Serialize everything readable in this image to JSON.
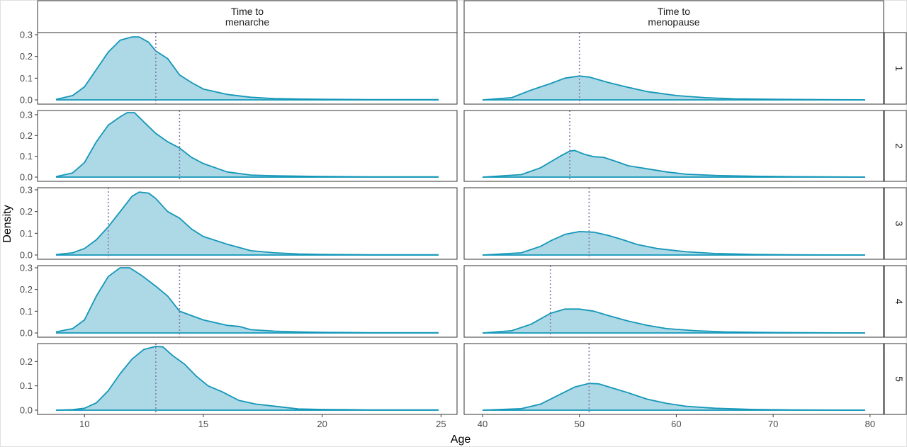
{
  "chart_data": {
    "type": "area",
    "xlabel": "Age",
    "ylabel": "Density",
    "columns": [
      {
        "strip": [
          "Time to",
          "menarche"
        ],
        "xlim": [
          8.8,
          24.9
        ],
        "xticks": [
          10,
          15,
          20,
          25
        ]
      },
      {
        "strip": [
          "Time to",
          "menopause"
        ],
        "xlim": [
          40,
          79.5
        ],
        "xticks": [
          40,
          50,
          60,
          70,
          80
        ]
      }
    ],
    "rows": [
      {
        "strip": "1",
        "ylim": [
          0,
          0.3
        ],
        "yticks": [
          0.0,
          0.1,
          0.2,
          0.3
        ]
      },
      {
        "strip": "2",
        "ylim": [
          0,
          0.31
        ],
        "yticks": [
          0.0,
          0.1,
          0.2,
          0.3
        ]
      },
      {
        "strip": "3",
        "ylim": [
          0,
          0.3
        ],
        "yticks": [
          0.0,
          0.1,
          0.2,
          0.3
        ]
      },
      {
        "strip": "4",
        "ylim": [
          0,
          0.3
        ],
        "yticks": [
          0.0,
          0.1,
          0.2,
          0.3
        ]
      },
      {
        "strip": "5",
        "ylim": [
          0,
          0.265
        ],
        "yticks": [
          0.0,
          0.1,
          0.2
        ]
      }
    ],
    "colors": {
      "line": "#1397b8",
      "fill": "#add8e6",
      "vline": "#7d7bb0",
      "panel_border": "#333333",
      "strip_bg": "#ffffff"
    },
    "grid": false,
    "panels": [
      {
        "row": 0,
        "col": 0,
        "vline": 13,
        "points": [
          [
            8.8,
            0.002
          ],
          [
            9.5,
            0.02
          ],
          [
            10,
            0.06
          ],
          [
            10.5,
            0.14
          ],
          [
            11,
            0.22
          ],
          [
            11.5,
            0.275
          ],
          [
            12,
            0.29
          ],
          [
            12.3,
            0.29
          ],
          [
            12.7,
            0.265
          ],
          [
            13,
            0.225
          ],
          [
            13.5,
            0.19
          ],
          [
            14,
            0.115
          ],
          [
            14.5,
            0.08
          ],
          [
            15,
            0.05
          ],
          [
            16,
            0.025
          ],
          [
            17,
            0.012
          ],
          [
            18,
            0.006
          ],
          [
            19,
            0.004
          ],
          [
            20,
            0.003
          ],
          [
            21,
            0.002
          ],
          [
            22,
            0.001
          ],
          [
            23,
            0.001
          ],
          [
            24.9,
            0.001
          ]
        ]
      },
      {
        "row": 0,
        "col": 1,
        "vline": 50,
        "points": [
          [
            40,
            0
          ],
          [
            43,
            0.01
          ],
          [
            45,
            0.045
          ],
          [
            47,
            0.075
          ],
          [
            48.5,
            0.1
          ],
          [
            50,
            0.11
          ],
          [
            51,
            0.105
          ],
          [
            53,
            0.08
          ],
          [
            55,
            0.058
          ],
          [
            57,
            0.038
          ],
          [
            60,
            0.02
          ],
          [
            63,
            0.01
          ],
          [
            66,
            0.005
          ],
          [
            70,
            0.003
          ],
          [
            75,
            0.001
          ],
          [
            79.5,
            0
          ]
        ]
      },
      {
        "row": 1,
        "col": 0,
        "vline": 14,
        "points": [
          [
            8.8,
            0.002
          ],
          [
            9.5,
            0.02
          ],
          [
            10,
            0.07
          ],
          [
            10.5,
            0.17
          ],
          [
            11,
            0.25
          ],
          [
            11.5,
            0.29
          ],
          [
            11.8,
            0.31
          ],
          [
            12.1,
            0.31
          ],
          [
            12.5,
            0.265
          ],
          [
            13,
            0.21
          ],
          [
            13.5,
            0.17
          ],
          [
            14,
            0.14
          ],
          [
            14.5,
            0.095
          ],
          [
            15,
            0.065
          ],
          [
            16,
            0.025
          ],
          [
            17,
            0.01
          ],
          [
            18,
            0.006
          ],
          [
            20,
            0.003
          ],
          [
            22,
            0.001
          ],
          [
            24.9,
            0.001
          ]
        ]
      },
      {
        "row": 1,
        "col": 1,
        "vline": 49,
        "points": [
          [
            40,
            0
          ],
          [
            44,
            0.012
          ],
          [
            46,
            0.045
          ],
          [
            48,
            0.1
          ],
          [
            49,
            0.125
          ],
          [
            49.5,
            0.128
          ],
          [
            50.5,
            0.11
          ],
          [
            51.5,
            0.098
          ],
          [
            52.5,
            0.095
          ],
          [
            54,
            0.072
          ],
          [
            55,
            0.055
          ],
          [
            57,
            0.04
          ],
          [
            59,
            0.025
          ],
          [
            61,
            0.014
          ],
          [
            64,
            0.008
          ],
          [
            68,
            0.004
          ],
          [
            72,
            0.002
          ],
          [
            79.5,
            0
          ]
        ]
      },
      {
        "row": 2,
        "col": 0,
        "vline": 11,
        "points": [
          [
            8.8,
            0.002
          ],
          [
            9.5,
            0.01
          ],
          [
            10,
            0.03
          ],
          [
            10.5,
            0.07
          ],
          [
            11,
            0.13
          ],
          [
            11.5,
            0.2
          ],
          [
            12,
            0.27
          ],
          [
            12.3,
            0.29
          ],
          [
            12.7,
            0.285
          ],
          [
            13,
            0.26
          ],
          [
            13.5,
            0.2
          ],
          [
            14,
            0.17
          ],
          [
            14.5,
            0.12
          ],
          [
            15,
            0.085
          ],
          [
            16,
            0.05
          ],
          [
            17,
            0.02
          ],
          [
            18,
            0.01
          ],
          [
            19,
            0.005
          ],
          [
            20,
            0.003
          ],
          [
            22,
            0.001
          ],
          [
            24.9,
            0.001
          ]
        ]
      },
      {
        "row": 2,
        "col": 1,
        "vline": 51,
        "points": [
          [
            40,
            0
          ],
          [
            44,
            0.01
          ],
          [
            46,
            0.04
          ],
          [
            47,
            0.065
          ],
          [
            48.5,
            0.095
          ],
          [
            50,
            0.108
          ],
          [
            51.5,
            0.105
          ],
          [
            53,
            0.09
          ],
          [
            54.5,
            0.07
          ],
          [
            56,
            0.048
          ],
          [
            58,
            0.03
          ],
          [
            61,
            0.015
          ],
          [
            64,
            0.007
          ],
          [
            68,
            0.003
          ],
          [
            72,
            0.001
          ],
          [
            79.5,
            0
          ]
        ]
      },
      {
        "row": 3,
        "col": 0,
        "vline": 14,
        "points": [
          [
            8.8,
            0.005
          ],
          [
            9.5,
            0.02
          ],
          [
            10,
            0.06
          ],
          [
            10.5,
            0.17
          ],
          [
            11,
            0.26
          ],
          [
            11.5,
            0.3
          ],
          [
            11.9,
            0.3
          ],
          [
            12.4,
            0.265
          ],
          [
            13,
            0.215
          ],
          [
            13.5,
            0.17
          ],
          [
            14,
            0.1
          ],
          [
            14.5,
            0.08
          ],
          [
            15,
            0.06
          ],
          [
            16,
            0.035
          ],
          [
            16.5,
            0.03
          ],
          [
            17,
            0.015
          ],
          [
            18,
            0.008
          ],
          [
            19,
            0.005
          ],
          [
            20,
            0.003
          ],
          [
            22,
            0.001
          ],
          [
            24.9,
            0.001
          ]
        ]
      },
      {
        "row": 3,
        "col": 1,
        "vline": 47,
        "points": [
          [
            40,
            0
          ],
          [
            43,
            0.01
          ],
          [
            45,
            0.04
          ],
          [
            47,
            0.09
          ],
          [
            48.5,
            0.11
          ],
          [
            50,
            0.11
          ],
          [
            51.5,
            0.1
          ],
          [
            53,
            0.08
          ],
          [
            55,
            0.055
          ],
          [
            57,
            0.035
          ],
          [
            59,
            0.02
          ],
          [
            62,
            0.01
          ],
          [
            65,
            0.005
          ],
          [
            70,
            0.002
          ],
          [
            79.5,
            0
          ]
        ]
      },
      {
        "row": 4,
        "col": 0,
        "vline": 13,
        "points": [
          [
            8.8,
            0
          ],
          [
            9.5,
            0.002
          ],
          [
            10,
            0.008
          ],
          [
            10.5,
            0.03
          ],
          [
            11,
            0.08
          ],
          [
            11.5,
            0.15
          ],
          [
            12,
            0.21
          ],
          [
            12.5,
            0.25
          ],
          [
            13,
            0.262
          ],
          [
            13.3,
            0.26
          ],
          [
            13.7,
            0.225
          ],
          [
            14.2,
            0.19
          ],
          [
            14.7,
            0.14
          ],
          [
            15.2,
            0.1
          ],
          [
            15.8,
            0.075
          ],
          [
            16.5,
            0.04
          ],
          [
            17.2,
            0.025
          ],
          [
            18.2,
            0.014
          ],
          [
            19,
            0.005
          ],
          [
            20,
            0.003
          ],
          [
            21,
            0.002
          ],
          [
            22,
            0.001
          ],
          [
            24.9,
            0.001
          ]
        ]
      },
      {
        "row": 4,
        "col": 1,
        "vline": 51,
        "points": [
          [
            40,
            0
          ],
          [
            44,
            0.006
          ],
          [
            46,
            0.025
          ],
          [
            48,
            0.065
          ],
          [
            49.5,
            0.095
          ],
          [
            51,
            0.11
          ],
          [
            52,
            0.108
          ],
          [
            53.5,
            0.09
          ],
          [
            55,
            0.072
          ],
          [
            57,
            0.045
          ],
          [
            59,
            0.028
          ],
          [
            61,
            0.016
          ],
          [
            64,
            0.008
          ],
          [
            68,
            0.003
          ],
          [
            72,
            0.001
          ],
          [
            79.5,
            0
          ]
        ]
      }
    ]
  }
}
